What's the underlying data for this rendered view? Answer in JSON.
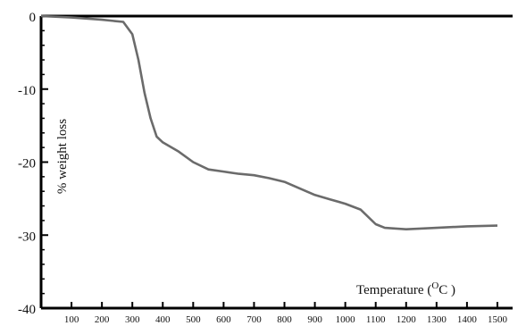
{
  "chart_data": {
    "type": "line",
    "title": "",
    "xlabel": "Temperature (",
    "xlabel_sup": "O",
    "xlabel_suffix": "C )",
    "ylabel": "% weight loss",
    "xlim": [
      0,
      1550
    ],
    "ylim": [
      -40,
      0
    ],
    "x_ticks": [
      100,
      200,
      300,
      400,
      500,
      600,
      700,
      800,
      900,
      1000,
      1100,
      1200,
      1300,
      1400,
      1500
    ],
    "x_tick_labels": [
      "100",
      "200",
      "300",
      "400",
      "500",
      "600",
      "700",
      "800",
      "900",
      "1000",
      "1100",
      "1200",
      "1300",
      "1400",
      "1500"
    ],
    "y_ticks": [
      0,
      -10,
      -20,
      -30,
      -40
    ],
    "y_tick_labels": [
      "0",
      "-10",
      "-20",
      "-30",
      "-40"
    ],
    "grid": false,
    "legend": "none",
    "line_color": "#6b6b6b",
    "series": [
      {
        "x": [
          0,
          100,
          200,
          270,
          300,
          320,
          340,
          360,
          380,
          400,
          450,
          500,
          550,
          600,
          650,
          700,
          750,
          800,
          850,
          900,
          950,
          1000,
          1050,
          1100,
          1130,
          1200,
          1300,
          1400,
          1500
        ],
        "y": [
          0,
          -0.2,
          -0.5,
          -0.8,
          -2.5,
          -6,
          -10.5,
          -14,
          -16.5,
          -17.3,
          -18.5,
          -20,
          -21,
          -21.3,
          -21.6,
          -21.8,
          -22.2,
          -22.7,
          -23.6,
          -24.5,
          -25.1,
          -25.7,
          -26.5,
          -28.5,
          -29,
          -29.2,
          -29,
          -28.8,
          -28.7
        ]
      }
    ]
  }
}
